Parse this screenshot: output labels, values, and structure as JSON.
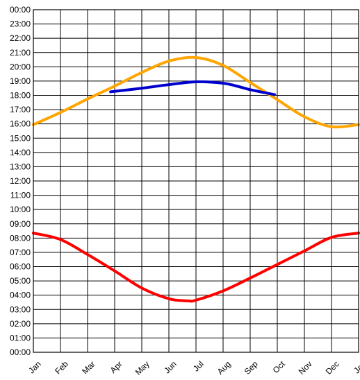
{
  "chart_data": {
    "type": "line",
    "title": "",
    "xlabel": "",
    "ylabel": "",
    "y_unit": "hour of day",
    "ylim": [
      0,
      24
    ],
    "xlim": [
      0,
      12
    ],
    "grid": true,
    "legend": "none",
    "y_tick_labels": [
      "00:00",
      "23:00",
      "22:00",
      "21:00",
      "20:00",
      "19:00",
      "18:00",
      "17:00",
      "16:00",
      "15:00",
      "14:00",
      "13:00",
      "12:00",
      "11:00",
      "10:00",
      "09:00",
      "08:00",
      "07:00",
      "06:00",
      "05:00",
      "04:00",
      "03:00",
      "02:00",
      "01:00",
      "00:00"
    ],
    "x_tick_labels": [
      "Jan",
      "Feb",
      "Mar",
      "Apr",
      "May",
      "Jun",
      "Jul",
      "Aug",
      "Sep",
      "Oct",
      "Nov",
      "Dec",
      "Jan"
    ],
    "series": [
      {
        "color": "#ffa500",
        "x": [
          0,
          1,
          2,
          3,
          4,
          5,
          6,
          7,
          8,
          9,
          10,
          11,
          12
        ],
        "y": [
          15.95,
          16.8,
          17.75,
          18.65,
          19.6,
          20.4,
          20.65,
          20.1,
          18.9,
          17.7,
          16.5,
          15.8,
          15.95
        ]
      },
      {
        "color": "#0000cc",
        "x": [
          2.85,
          4,
          5,
          6,
          7,
          7.5,
          8,
          8.9
        ],
        "y": [
          18.25,
          18.5,
          18.75,
          18.95,
          18.85,
          18.65,
          18.4,
          18.05
        ]
      },
      {
        "color": "#ff0000",
        "x": [
          0,
          1,
          2,
          3,
          4,
          5,
          5.7,
          6,
          7,
          8,
          9,
          10,
          11,
          12
        ],
        "y": [
          8.35,
          7.9,
          6.85,
          5.7,
          4.5,
          3.75,
          3.6,
          3.65,
          4.3,
          5.2,
          6.15,
          7.1,
          8.05,
          8.35
        ]
      }
    ]
  }
}
